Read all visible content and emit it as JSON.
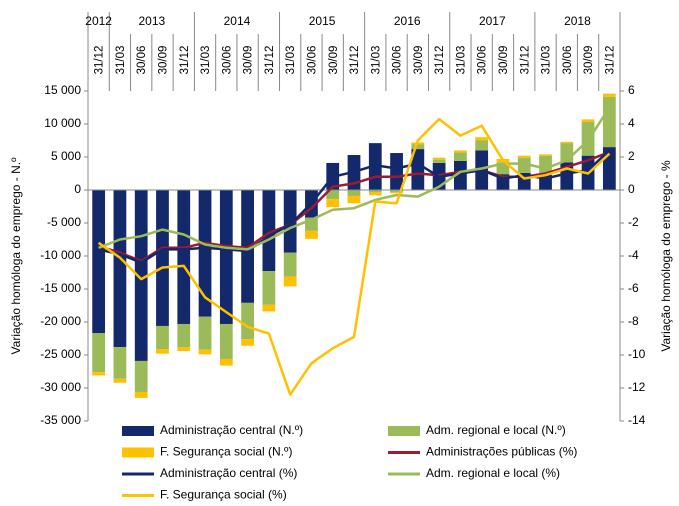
{
  "chart_data": {
    "type": "bar",
    "years": [
      "2012",
      "2013",
      "2014",
      "2015",
      "2016",
      "2017",
      "2018"
    ],
    "categories": [
      "31/12",
      "31/03",
      "30/06",
      "30/09",
      "31/12",
      "31/03",
      "30/06",
      "30/09",
      "31/12",
      "31/03",
      "30/06",
      "30/09",
      "31/12",
      "31/03",
      "30/06",
      "30/09",
      "31/12",
      "31/03",
      "30/06",
      "30/09",
      "31/12",
      "31/03",
      "30/06",
      "30/09",
      "31/12"
    ],
    "ylabel": "Variação homóloga do emprego - N.º",
    "y2label": "Variação homóloga do emprego - %",
    "ylim": [
      -35000,
      15000
    ],
    "yticks": [
      {
        "value": -35000,
        "label": "-35 000"
      },
      {
        "value": -30000,
        "label": "-30 000"
      },
      {
        "value": -25000,
        "label": "-25 000"
      },
      {
        "value": -20000,
        "label": "-20 000"
      },
      {
        "value": -15000,
        "label": "-15 000"
      },
      {
        "value": -10000,
        "label": "-10 000"
      },
      {
        "value": -5000,
        "label": "-5 000"
      },
      0,
      {
        "value": 5000,
        "label": "5 000"
      },
      {
        "value": 10000,
        "label": "10 000"
      },
      {
        "value": 15000,
        "label": "15 000"
      }
    ],
    "y2lim": [
      -14,
      6
    ],
    "y2ticks": [
      -14,
      -12,
      -10,
      -8,
      -6,
      -4,
      -2,
      0,
      2,
      4,
      6
    ],
    "series": [
      {
        "name": "Administração central (N.º)",
        "type": "bar",
        "color": "#14286c",
        "values": [
          -21700,
          -23800,
          -25900,
          -20600,
          -20300,
          -19200,
          -20300,
          -17100,
          -12300,
          -9500,
          -4200,
          4100,
          5300,
          7100,
          5600,
          6200,
          4100,
          4400,
          6000,
          2400,
          2600,
          2300,
          4200,
          5200,
          6500
        ]
      },
      {
        "name": "Adm. regional e local (N.º)",
        "type": "bar",
        "color": "#9bbb59",
        "values": [
          -5900,
          -4800,
          -4700,
          -3500,
          -3500,
          -5000,
          -5300,
          -5500,
          -5100,
          -3600,
          -2000,
          -1400,
          -900,
          -300,
          -300,
          700,
          500,
          1300,
          1500,
          1800,
          2300,
          2900,
          2900,
          5100,
          7600
        ]
      },
      {
        "name": "F. Segurança social (N.º)",
        "type": "bar",
        "color": "#ffc000",
        "values": [
          -500,
          -600,
          -900,
          -700,
          -600,
          -700,
          -1000,
          -1000,
          -1000,
          -1500,
          -1200,
          -1200,
          -1100,
          -500,
          -200,
          300,
          300,
          300,
          500,
          500,
          300,
          200,
          200,
          400,
          500
        ]
      },
      {
        "name": "Administrações públicas (%)",
        "type": "line",
        "axis": "y2",
        "color": "#9b1b30",
        "values": [
          -3.4,
          -3.8,
          -4.3,
          -3.5,
          -3.5,
          -3.2,
          -3.4,
          -3.5,
          -2.6,
          -2.1,
          -1.1,
          0.2,
          0.4,
          0.8,
          0.8,
          1.0,
          0.9,
          1.1,
          1.2,
          0.8,
          0.8,
          1.0,
          1.4,
          1.8,
          2.3
        ]
      },
      {
        "name": "Administração central (%)",
        "type": "line",
        "axis": "y2",
        "color": "#14286c",
        "values": [
          -3.6,
          -3.9,
          -4.4,
          -3.6,
          -3.6,
          -3.5,
          -3.6,
          -3.7,
          -2.8,
          -2.1,
          -0.8,
          0.8,
          1.1,
          1.5,
          1.3,
          1.6,
          0.8,
          1.0,
          1.2,
          0.7,
          0.9,
          0.7,
          1.0,
          1.2,
          2.4
        ]
      },
      {
        "name": "Adm. regional e local (%)",
        "type": "line",
        "axis": "y2",
        "color": "#9bbb59",
        "values": [
          -3.5,
          -3.0,
          -2.8,
          -2.4,
          -2.7,
          -3.3,
          -3.5,
          -3.6,
          -3.0,
          -2.3,
          -1.8,
          -1.2,
          -1.1,
          -0.6,
          -0.3,
          -0.4,
          0.2,
          1.1,
          1.3,
          1.6,
          1.6,
          1.3,
          1.8,
          3.0,
          5.0
        ]
      },
      {
        "name": "F. Segurança social (%)",
        "type": "line",
        "axis": "y2",
        "color": "#ffc000",
        "values": [
          -3.2,
          -4.1,
          -5.4,
          -4.7,
          -4.6,
          -6.5,
          -7.4,
          -8.3,
          -8.7,
          -12.4,
          -10.5,
          -9.6,
          -8.9,
          -0.7,
          -0.8,
          3.0,
          4.3,
          3.3,
          3.9,
          1.8,
          0.7,
          0.9,
          1.3,
          1.0,
          2.2
        ]
      }
    ]
  }
}
